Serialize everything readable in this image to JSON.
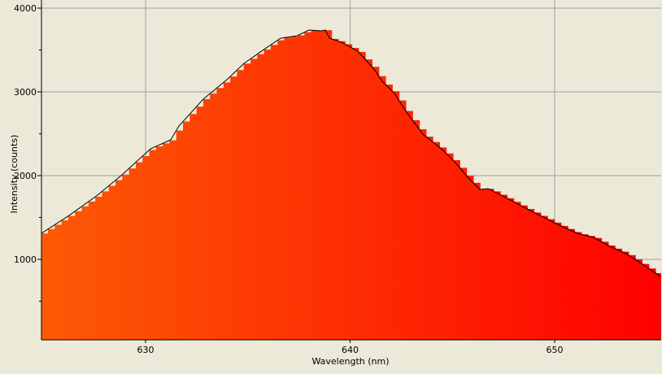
{
  "chart_data": {
    "type": "area",
    "xlabel": "Wavelength (nm)",
    "ylabel": "Intensity (counts)",
    "xlim": [
      624.9,
      655.2
    ],
    "ylim": [
      0,
      4000
    ],
    "x_ticks": [
      630,
      640,
      650
    ],
    "y_ticks": [
      1000,
      2000,
      3000,
      4000
    ],
    "grid": true,
    "fill_gradient": [
      "#fc5a05",
      "#ff0000"
    ],
    "line_color": "#000000",
    "background": "#ece9d8",
    "series": [
      {
        "x": [
          624.91,
          626.26,
          627.65,
          628.85,
          630.24,
          631.23,
          631.63,
          632.82,
          634.02,
          634.81,
          635.61,
          636.6,
          637.4,
          637.99,
          638.59,
          638.79,
          638.99,
          639.58,
          640.38,
          641.17,
          641.57,
          642.17,
          642.76,
          643.56,
          644.55,
          645.15,
          645.75,
          646.34,
          646.74,
          647.53,
          648.73,
          649.52,
          650.32,
          651.11,
          651.91,
          652.7,
          653.5,
          654.29,
          655.17
        ],
        "y": [
          1311,
          1524,
          1767,
          2010,
          2320,
          2427,
          2592,
          2913,
          3155,
          3340,
          3476,
          3641,
          3670,
          3738,
          3728,
          3738,
          3641,
          3592,
          3485,
          3272,
          3126,
          2981,
          2757,
          2495,
          2301,
          2155,
          1981,
          1835,
          1845,
          1748,
          1592,
          1495,
          1398,
          1311,
          1262,
          1155,
          1068,
          942,
          796
        ]
      }
    ]
  }
}
